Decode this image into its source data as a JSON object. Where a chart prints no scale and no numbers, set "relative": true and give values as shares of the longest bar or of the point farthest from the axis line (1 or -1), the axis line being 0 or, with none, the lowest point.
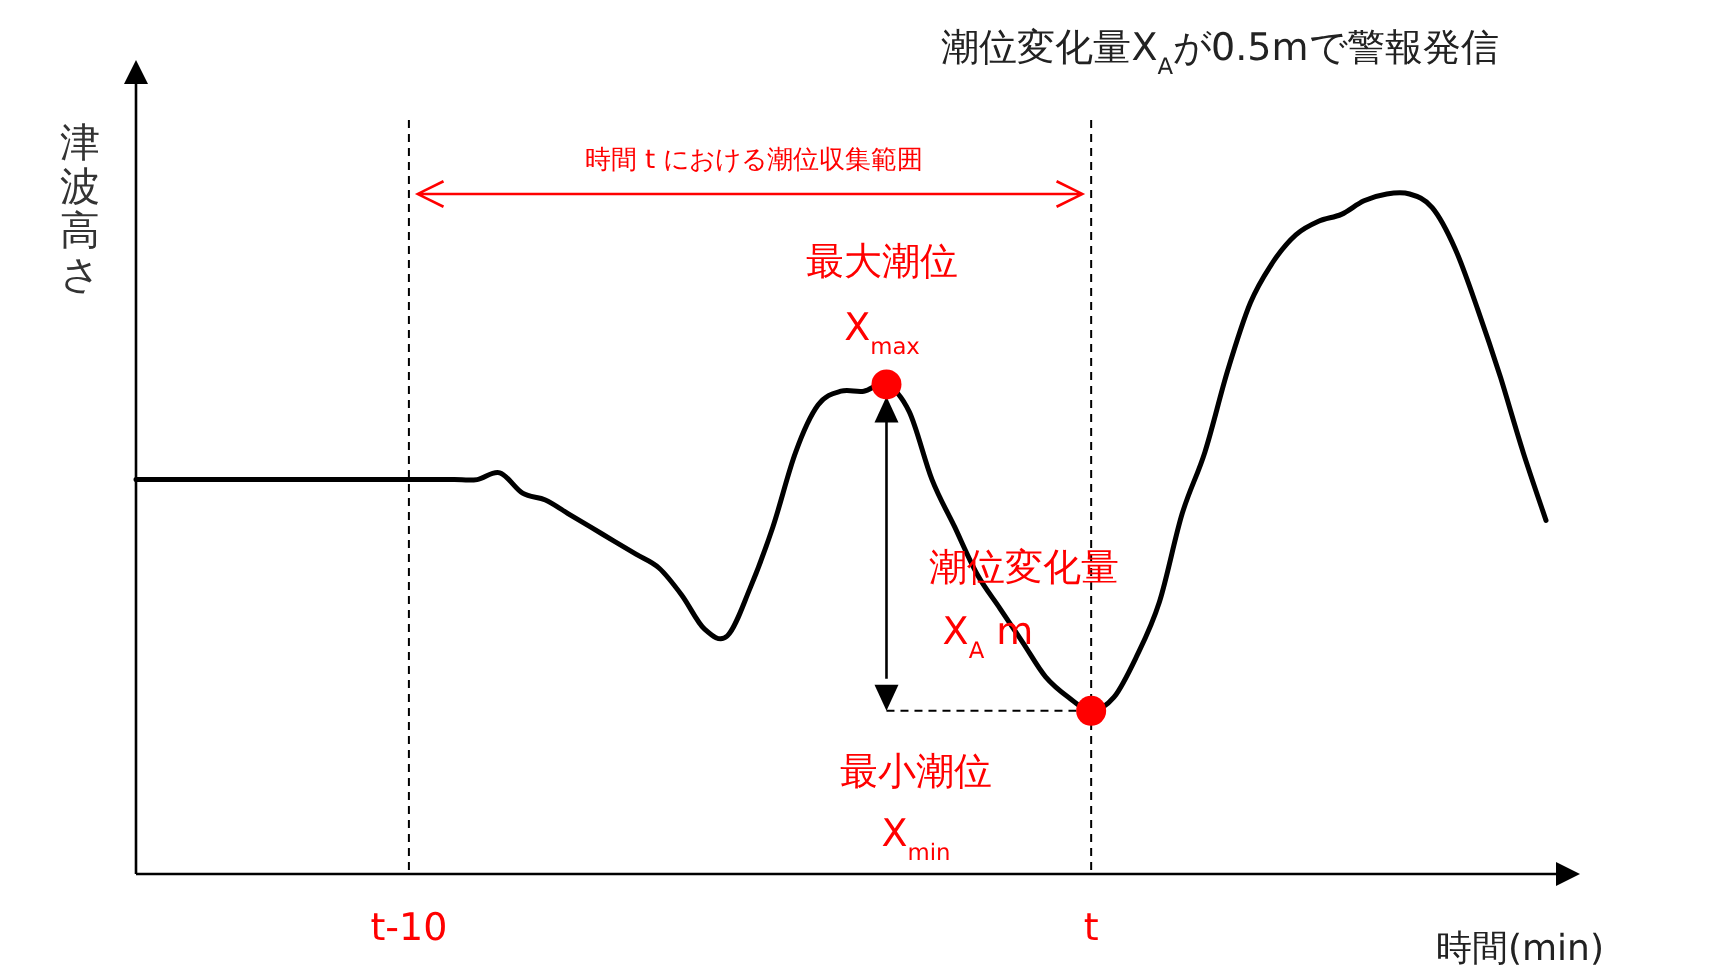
{
  "chart_data": {
    "type": "line",
    "relative": true,
    "tick_labels": "x",
    "title": "潮位変化量X$_{A}$が0.5mで警報発信",
    "ylabel": "津波高さ",
    "xlabel": "時間(min)",
    "categories": [
      null,
      null,
      null,
      null,
      null,
      null,
      null,
      null,
      null,
      null,
      null,
      null,
      "t-10",
      null,
      null,
      null,
      null,
      null,
      null,
      null,
      null,
      null,
      null,
      null,
      null,
      null,
      null,
      null,
      null,
      null,
      null,
      null,
      null,
      null,
      null,
      null,
      null,
      null,
      null,
      null,
      null,
      null,
      "t",
      null,
      null,
      null,
      null,
      null,
      null,
      null,
      null,
      null,
      null,
      null,
      null,
      null,
      null,
      null,
      null,
      null,
      null,
      null,
      null
    ],
    "series": [
      {
        "color": "#000000",
        "values": [
          0.58,
          0.58,
          0.58,
          0.58,
          0.58,
          0.58,
          0.58,
          0.58,
          0.58,
          0.58,
          0.58,
          0.58,
          0.58,
          0.58,
          0.58,
          0.58,
          0.59,
          0.56,
          0.55,
          0.53,
          0.51,
          0.49,
          0.47,
          0.45,
          0.41,
          0.36,
          0.35,
          0.42,
          0.51,
          0.62,
          0.69,
          0.71,
          0.71,
          0.72,
          0.68,
          0.58,
          0.51,
          0.44,
          0.39,
          0.34,
          0.29,
          0.26,
          0.24,
          0.26,
          0.32,
          0.4,
          0.53,
          0.62,
          0.74,
          0.84,
          0.9,
          0.94,
          0.96,
          0.97,
          0.99,
          1.0,
          1.0,
          0.98,
          0.92,
          0.83,
          0.73,
          0.62,
          0.52
        ]
      },
      {
        "type": "scatter",
        "color": "#ff0000",
        "marker": "circle",
        "values": [
          null,
          null,
          null,
          null,
          null,
          null,
          null,
          null,
          null,
          null,
          null,
          null,
          null,
          null,
          null,
          null,
          null,
          null,
          null,
          null,
          null,
          null,
          null,
          null,
          null,
          null,
          null,
          null,
          null,
          null,
          null,
          null,
          null,
          0.72,
          null,
          null,
          null,
          null,
          null,
          null,
          null,
          null,
          0.24,
          null,
          null,
          null,
          null,
          null,
          null,
          null,
          null,
          null,
          null,
          null,
          null,
          null,
          null,
          null,
          null,
          null,
          null,
          null,
          null
        ]
      }
    ],
    "ref_lines": [
      {
        "axis": "x",
        "value": "t-10",
        "color": "#000000",
        "line_style": "dashed"
      },
      {
        "axis": "x",
        "value": "t",
        "color": "#000000",
        "line_style": "dashed"
      }
    ],
    "annotations": [
      "時間 t における潮位収集範囲",
      "最大潮位",
      "X$_{max}$",
      "潮位変化量",
      "X$_{A}$ m",
      "最小潮位",
      "X$_{min}$"
    ]
  }
}
